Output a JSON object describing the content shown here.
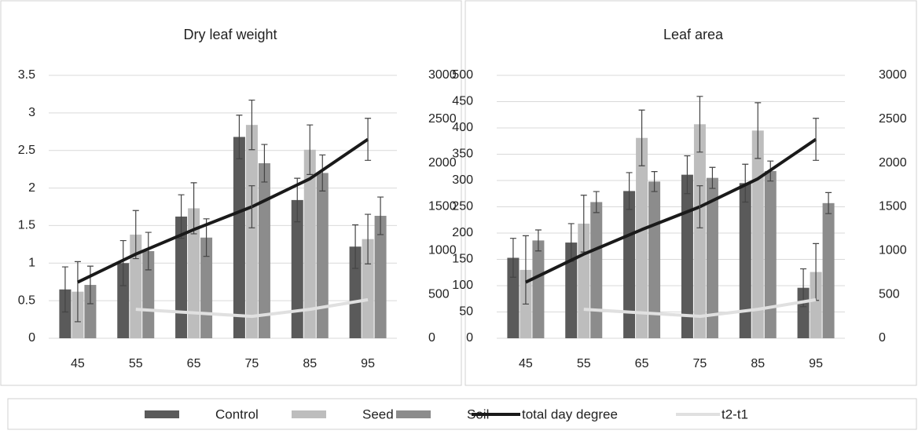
{
  "chart_data": [
    {
      "type": "bar",
      "title": "Dry leaf weight",
      "categories": [
        "45",
        "55",
        "65",
        "75",
        "85",
        "95"
      ],
      "ylim": [
        0,
        3.5
      ],
      "yticks": [
        0,
        0.5,
        1,
        1.5,
        2,
        2.5,
        3,
        3.5
      ],
      "y2lim": [
        0,
        3000
      ],
      "y2ticks": [
        0,
        500,
        1000,
        1500,
        2000,
        2500,
        3000
      ],
      "grid": true,
      "series": [
        {
          "name": "Control",
          "type": "bar",
          "color": "#5a5a5a",
          "values": [
            0.65,
            1.0,
            1.62,
            2.68,
            1.84,
            1.22
          ],
          "errors": [
            0.3,
            0.3,
            0.29,
            0.29,
            0.29,
            0.29
          ]
        },
        {
          "name": "Seed",
          "type": "bar",
          "color": "#bdbdbd",
          "values": [
            0.62,
            1.38,
            1.73,
            2.84,
            2.51,
            1.32
          ],
          "errors": [
            0.4,
            0.32,
            0.34,
            0.33,
            0.33,
            0.33
          ]
        },
        {
          "name": "Soil",
          "type": "bar",
          "color": "#8c8c8c",
          "values": [
            0.71,
            1.16,
            1.34,
            2.33,
            2.2,
            1.63
          ],
          "errors": [
            0.25,
            0.25,
            0.25,
            0.25,
            0.24,
            0.25
          ]
        },
        {
          "name": "total day degree",
          "type": "line",
          "axis": "y2",
          "color": "#1a1a1a",
          "values": [
            640,
            960,
            1240,
            1500,
            1820,
            2270
          ],
          "errors": [
            null,
            null,
            null,
            240,
            null,
            240
          ]
        },
        {
          "name": "t2-t1",
          "type": "line",
          "axis": "y2",
          "color": "#e0e0e0",
          "values": [
            null,
            330,
            290,
            250,
            330,
            440
          ]
        }
      ]
    },
    {
      "type": "bar",
      "title": "Leaf area",
      "categories": [
        "45",
        "55",
        "65",
        "75",
        "85",
        "95"
      ],
      "ylim": [
        0,
        500
      ],
      "yticks": [
        0,
        50,
        100,
        150,
        200,
        250,
        300,
        350,
        400,
        450,
        500
      ],
      "y2lim": [
        0,
        3000
      ],
      "y2ticks": [
        0,
        500,
        1000,
        1500,
        2000,
        2500,
        3000
      ],
      "grid": true,
      "series": [
        {
          "name": "Control",
          "type": "bar",
          "color": "#5a5a5a",
          "values": [
            153,
            182,
            280,
            311,
            295,
            96
          ],
          "errors": [
            37,
            36,
            35,
            36,
            36,
            36
          ]
        },
        {
          "name": "Seed",
          "type": "bar",
          "color": "#bdbdbd",
          "values": [
            130,
            218,
            381,
            407,
            395,
            126
          ],
          "errors": [
            65,
            54,
            53,
            53,
            53,
            54
          ]
        },
        {
          "name": "Soil",
          "type": "bar",
          "color": "#8c8c8c",
          "values": [
            186,
            259,
            298,
            305,
            318,
            257
          ],
          "errors": [
            20,
            20,
            19,
            20,
            19,
            20
          ]
        },
        {
          "name": "total day degree",
          "type": "line",
          "axis": "y2",
          "color": "#1a1a1a",
          "values": [
            640,
            960,
            1240,
            1500,
            1820,
            2270
          ],
          "errors": [
            null,
            null,
            null,
            240,
            null,
            240
          ]
        },
        {
          "name": "t2-t1",
          "type": "line",
          "axis": "y2",
          "color": "#e0e0e0",
          "values": [
            null,
            330,
            290,
            250,
            330,
            440
          ]
        }
      ]
    }
  ]
}
